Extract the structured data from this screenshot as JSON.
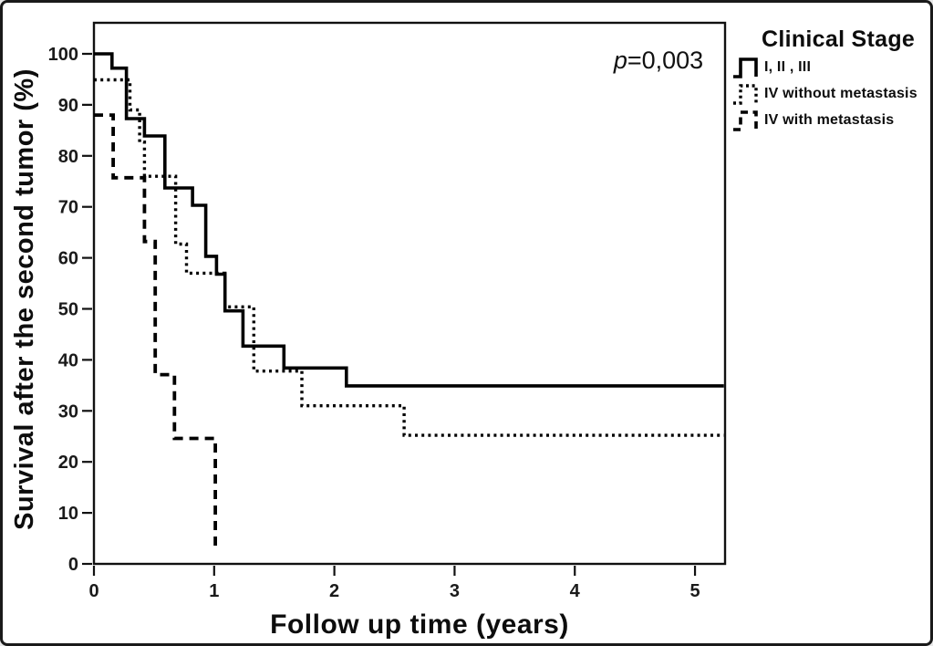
{
  "figure": {
    "background": "#ffffff",
    "border_color": "#1a1a1a",
    "line_color": "#000000"
  },
  "chart_data": {
    "type": "line",
    "chart_style": "kaplan-meier-survival-step",
    "title": "",
    "xlabel": "Follow up time (years)",
    "ylabel": "Survival after the second tumor (%)",
    "xlim": [
      0,
      5.25
    ],
    "ylim": [
      0,
      100
    ],
    "x_ticks": [
      0,
      1,
      2,
      3,
      4,
      5
    ],
    "y_ticks": [
      0,
      10,
      20,
      30,
      40,
      50,
      60,
      70,
      80,
      90,
      100
    ],
    "grid": false,
    "annotation": {
      "text": "p=0,003",
      "p_symbol": "p",
      "p_rest": "=0,003",
      "position": "top-right-inside"
    },
    "legend": {
      "title": "Clinical Stage",
      "position": "outside-top-right"
    },
    "series": [
      {
        "name": "I, II , III",
        "line_style": "solid",
        "points": [
          [
            0,
            100
          ],
          [
            0.15,
            100
          ],
          [
            0.15,
            97.2
          ],
          [
            0.27,
            97.2
          ],
          [
            0.27,
            87.3
          ],
          [
            0.42,
            87.3
          ],
          [
            0.42,
            83.9
          ],
          [
            0.59,
            83.9
          ],
          [
            0.59,
            73.7
          ],
          [
            0.82,
            73.7
          ],
          [
            0.82,
            70.3
          ],
          [
            0.93,
            70.3
          ],
          [
            0.93,
            60.3
          ],
          [
            1.02,
            60.3
          ],
          [
            1.02,
            56.8
          ],
          [
            1.09,
            56.8
          ],
          [
            1.09,
            49.6
          ],
          [
            1.24,
            49.6
          ],
          [
            1.24,
            42.7
          ],
          [
            1.58,
            42.7
          ],
          [
            1.58,
            38.4
          ],
          [
            2.1,
            38.4
          ],
          [
            2.1,
            34.9
          ],
          [
            5.24,
            34.9
          ]
        ]
      },
      {
        "name": "IV without metastasis",
        "line_style": "dotted",
        "points": [
          [
            0,
            94.9
          ],
          [
            0.3,
            94.9
          ],
          [
            0.3,
            89
          ],
          [
            0.38,
            89
          ],
          [
            0.38,
            82.7
          ],
          [
            0.42,
            82.7
          ],
          [
            0.42,
            76
          ],
          [
            0.68,
            76
          ],
          [
            0.68,
            62.7
          ],
          [
            0.77,
            62.7
          ],
          [
            0.77,
            57
          ],
          [
            1.09,
            57
          ],
          [
            1.09,
            50.4
          ],
          [
            1.33,
            50.4
          ],
          [
            1.33,
            37.8
          ],
          [
            1.73,
            37.8
          ],
          [
            1.73,
            31
          ],
          [
            2.58,
            31
          ],
          [
            2.58,
            25.2
          ],
          [
            5.24,
            25.2
          ]
        ]
      },
      {
        "name": "IV with metastasis",
        "line_style": "dashed",
        "points": [
          [
            0,
            88
          ],
          [
            0.16,
            88
          ],
          [
            0.16,
            75.7
          ],
          [
            0.42,
            75.7
          ],
          [
            0.42,
            63.2
          ],
          [
            0.51,
            63.2
          ],
          [
            0.51,
            37.1
          ],
          [
            0.67,
            37.1
          ],
          [
            0.67,
            24.6
          ],
          [
            1.01,
            24.6
          ],
          [
            1.01,
            3
          ]
        ]
      }
    ]
  }
}
